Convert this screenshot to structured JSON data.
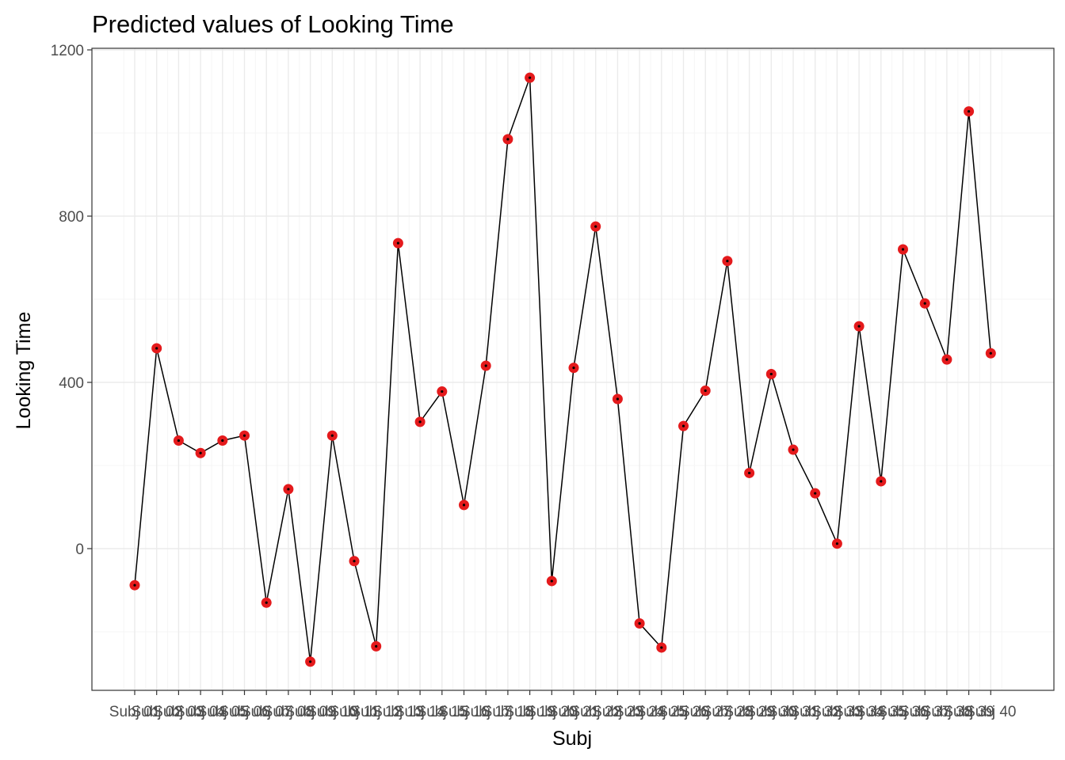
{
  "chart_data": {
    "type": "line",
    "title": "Predicted values of Looking Time",
    "xlabel": "Subj",
    "ylabel": "Looking Time",
    "ylim": [
      -340,
      1200
    ],
    "yticks": [
      0,
      400,
      800,
      1200
    ],
    "grid": true,
    "categories": [
      "Subj 01",
      "Subj 02",
      "Subj 03",
      "Subj 04",
      "Subj 05",
      "Subj 06",
      "Subj 07",
      "Subj 08",
      "Subj 09",
      "Subj 10",
      "Subj 11",
      "Subj 12",
      "Subj 13",
      "Subj 14",
      "Subj 15",
      "Subj 16",
      "Subj 17",
      "Subj 18",
      "Subj 19",
      "Subj 20",
      "Subj 21",
      "Subj 22",
      "Subj 23",
      "Subj 24",
      "Subj 25",
      "Subj 26",
      "Subj 27",
      "Subj 28",
      "Subj 29",
      "Subj 30",
      "Subj 31",
      "Subj 32",
      "Subj 33",
      "Subj 34",
      "Subj 35",
      "Subj 36",
      "Subj 37",
      "Subj 38",
      "Subj 39",
      "Subj 40"
    ],
    "values": [
      -88,
      482,
      260,
      230,
      260,
      272,
      -130,
      143,
      -272,
      272,
      -30,
      -235,
      735,
      305,
      378,
      105,
      440,
      985,
      1133,
      -78,
      435,
      775,
      360,
      -180,
      -238,
      295,
      380,
      692,
      182,
      420,
      238,
      133,
      12,
      535,
      162,
      720,
      590,
      455,
      1052,
      470
    ],
    "colors": {
      "point": "#e41a1c",
      "line": "#000000",
      "grid_major": "#ebebeb",
      "grid_minor": "#f5f5f5",
      "panel_border": "#333333"
    }
  }
}
